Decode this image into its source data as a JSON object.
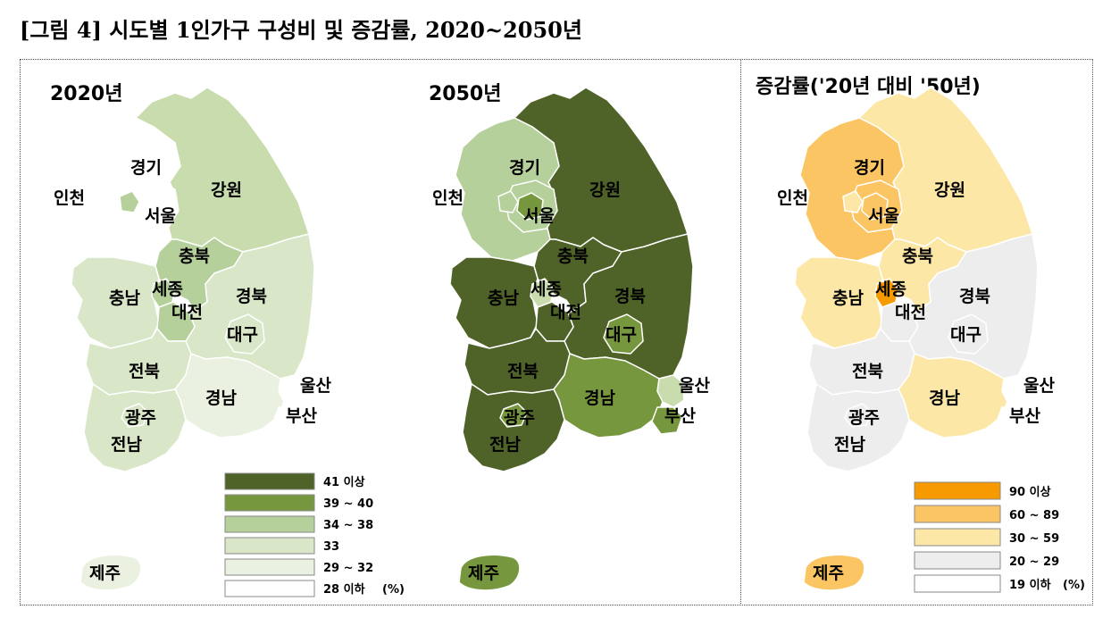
{
  "figure": {
    "title": "[그림 4] 시도별 1인가구 구성비 및 증감률, 2020~2050년"
  },
  "maps": [
    {
      "id": "map-2020",
      "title": "2020년",
      "regions": {
        "gyeonggi": {
          "label": "경기",
          "fill": "#ffffff"
        },
        "seoul": {
          "label": "서울",
          "fill": "#ffffff"
        },
        "seoul_core": {
          "label": "",
          "fill": "#ffffff"
        },
        "incheon": {
          "label": "인천",
          "fill": "#ffffff"
        },
        "incheon_isle": {
          "label": "",
          "fill": "#b5d09a"
        },
        "gangwon": {
          "label": "강원",
          "fill": "#c9dcae"
        },
        "chungbuk": {
          "label": "충북",
          "fill": "#b5d09a"
        },
        "chungnam": {
          "label": "충남",
          "fill": "#d9e6c7"
        },
        "sejong": {
          "label": "세종",
          "fill": "#b5d09a"
        },
        "daejeon": {
          "label": "대전",
          "fill": "#b5d09a"
        },
        "gyeongbuk": {
          "label": "경북",
          "fill": "#d9e6c7"
        },
        "daegu": {
          "label": "대구",
          "fill": "#d9e6c7"
        },
        "jeonbuk": {
          "label": "전북",
          "fill": "#d9e6c7"
        },
        "gyeongnam": {
          "label": "경남",
          "fill": "#eaf1e0"
        },
        "ulsan": {
          "label": "울산",
          "fill": "#ffffff"
        },
        "busan": {
          "label": "부산",
          "fill": "#ffffff"
        },
        "gwangju": {
          "label": "광주",
          "fill": "#d9e6c7"
        },
        "jeonnam": {
          "label": "전남",
          "fill": "#d9e6c7"
        },
        "jeju": {
          "label": "제주",
          "fill": "#eaf1e0"
        }
      }
    },
    {
      "id": "map-2050",
      "title": "2050년",
      "regions": {
        "gyeonggi": {
          "label": "경기",
          "fill": "#b5d09a"
        },
        "seoul": {
          "label": "서울",
          "fill": "#b5d09a"
        },
        "seoul_core": {
          "label": "",
          "fill": "#77973e"
        },
        "incheon": {
          "label": "인천",
          "fill": "#ffffff"
        },
        "incheon_isle": {
          "label": "",
          "fill": "#b5d09a"
        },
        "gangwon": {
          "label": "강원",
          "fill": "#4f6228"
        },
        "chungbuk": {
          "label": "충북",
          "fill": "#4f6228"
        },
        "chungnam": {
          "label": "충남",
          "fill": "#4f6228"
        },
        "sejong": {
          "label": "세종",
          "fill": "#c9dcae"
        },
        "daejeon": {
          "label": "대전",
          "fill": "#4f6228"
        },
        "gyeongbuk": {
          "label": "경북",
          "fill": "#4f6228"
        },
        "daegu": {
          "label": "대구",
          "fill": "#77973e"
        },
        "jeonbuk": {
          "label": "전북",
          "fill": "#4f6228"
        },
        "gyeongnam": {
          "label": "경남",
          "fill": "#77973e"
        },
        "ulsan": {
          "label": "울산",
          "fill": "#c9dcae"
        },
        "busan": {
          "label": "부산",
          "fill": "#77973e"
        },
        "gwangju": {
          "label": "광주",
          "fill": "#77973e"
        },
        "jeonnam": {
          "label": "전남",
          "fill": "#4f6228"
        },
        "jeju": {
          "label": "제주",
          "fill": "#77973e"
        }
      }
    },
    {
      "id": "map-change",
      "title": "증감률('20년 대비 '50년)",
      "regions": {
        "gyeonggi": {
          "label": "경기",
          "fill": "#fcc564"
        },
        "seoul": {
          "label": "서울",
          "fill": "#fcc564"
        },
        "seoul_core": {
          "label": "",
          "fill": "#fcc564"
        },
        "incheon": {
          "label": "인천",
          "fill": "#ffffff"
        },
        "incheon_isle": {
          "label": "",
          "fill": "#fde7a6"
        },
        "gangwon": {
          "label": "강원",
          "fill": "#fde7a6"
        },
        "chungbuk": {
          "label": "충북",
          "fill": "#fde7a6"
        },
        "chungnam": {
          "label": "충남",
          "fill": "#fde7a6"
        },
        "sejong": {
          "label": "세종",
          "fill": "#f79a00"
        },
        "daejeon": {
          "label": "대전",
          "fill": "#ededed"
        },
        "gyeongbuk": {
          "label": "경북",
          "fill": "#ededed"
        },
        "daegu": {
          "label": "대구",
          "fill": "#ededed"
        },
        "jeonbuk": {
          "label": "전북",
          "fill": "#ededed"
        },
        "gyeongnam": {
          "label": "경남",
          "fill": "#fde7a6"
        },
        "ulsan": {
          "label": "울산",
          "fill": "#ffffff"
        },
        "busan": {
          "label": "부산",
          "fill": "#ffffff"
        },
        "gwangju": {
          "label": "광주",
          "fill": "#ededed"
        },
        "jeonnam": {
          "label": "전남",
          "fill": "#ededed"
        },
        "jeju": {
          "label": "제주",
          "fill": "#fcc564"
        }
      }
    }
  ],
  "legends": {
    "share": {
      "unit": "(%)",
      "classes": [
        {
          "label": "41 이상",
          "color": "#4f6228"
        },
        {
          "label": "39 ~ 40",
          "color": "#77973e"
        },
        {
          "label": "34 ~ 38",
          "color": "#b5d09a"
        },
        {
          "label": "33",
          "color": "#d9e6c7"
        },
        {
          "label": "29 ~ 32",
          "color": "#eaf1e0"
        },
        {
          "label": "28 이하",
          "color": "#ffffff"
        }
      ]
    },
    "change": {
      "unit": "(%)",
      "classes": [
        {
          "label": "90 이상",
          "color": "#f79a00"
        },
        {
          "label": "60 ~ 89",
          "color": "#fcc564"
        },
        {
          "label": "30 ~ 59",
          "color": "#fde7a6"
        },
        {
          "label": "20 ~ 29",
          "color": "#ededed"
        },
        {
          "label": "19 이하",
          "color": "#ffffff"
        }
      ]
    }
  }
}
